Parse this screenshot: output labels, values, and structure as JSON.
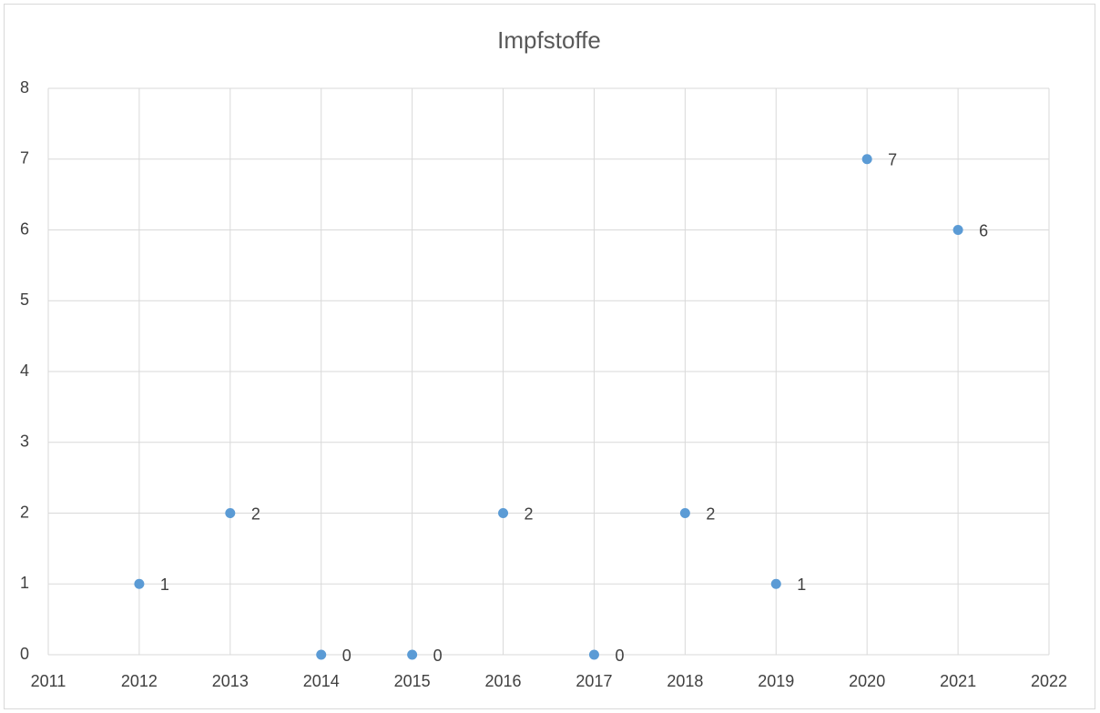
{
  "chart_data": {
    "type": "line",
    "title": "Impfstoffe",
    "x": [
      2012,
      2013,
      2014,
      2015,
      2016,
      2017,
      2018,
      2019,
      2020,
      2021
    ],
    "values": [
      1,
      2,
      0,
      0,
      2,
      0,
      2,
      1,
      7,
      6
    ],
    "color": "#5b9bd5",
    "xlim": [
      2011,
      2022
    ],
    "xticks": [
      2011,
      2012,
      2013,
      2014,
      2015,
      2016,
      2017,
      2018,
      2019,
      2020,
      2021,
      2022
    ],
    "ylim": [
      0,
      8
    ],
    "yticks": [
      0,
      1,
      2,
      3,
      4,
      5,
      6,
      7,
      8
    ],
    "grid": true,
    "data_labels": true
  }
}
